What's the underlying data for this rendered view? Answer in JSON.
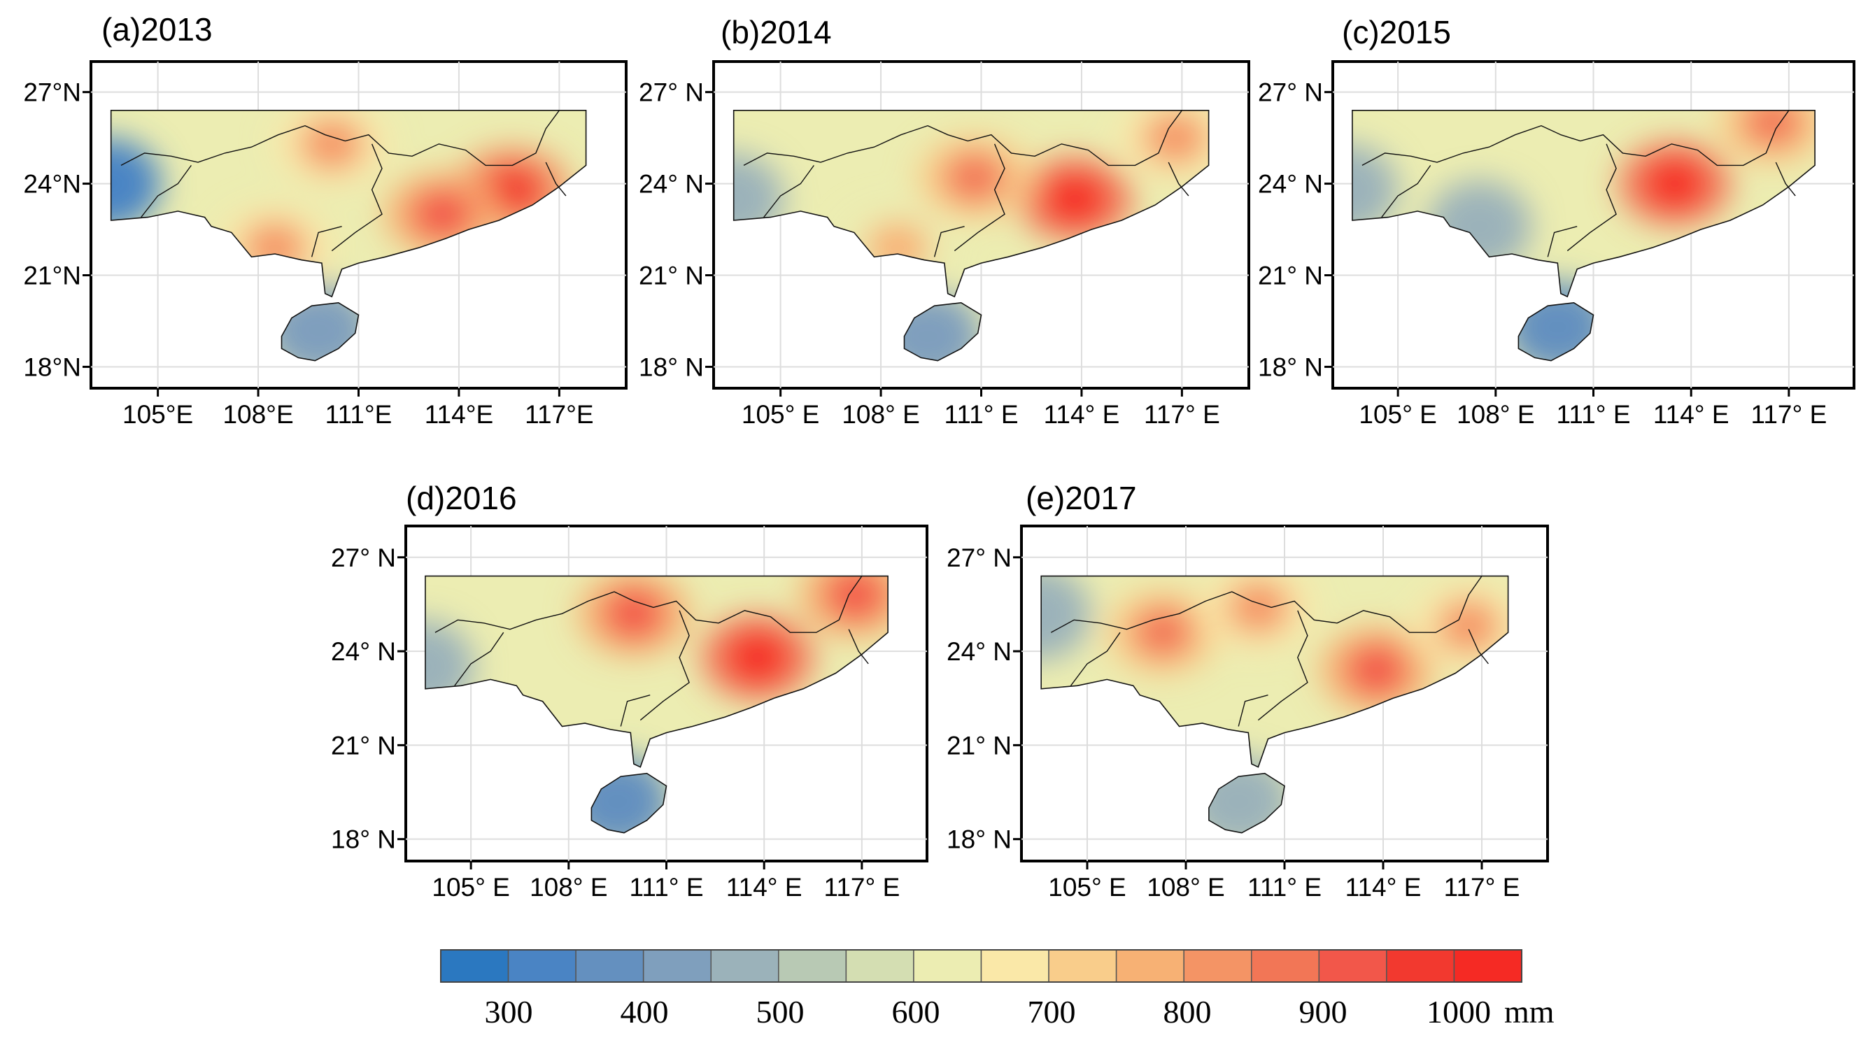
{
  "panels": [
    {
      "id": "a",
      "title": "(a)2013",
      "lat_labels": [
        "27°N",
        "24°N",
        "21°N",
        "18°N"
      ],
      "lon_labels": [
        "105°E",
        "108°E",
        "111°E",
        "114°E",
        "117°E"
      ],
      "hotspots": [
        {
          "lon": 115.6,
          "lat": 23.8,
          "mm": 950
        },
        {
          "lon": 113.5,
          "lat": 23.0,
          "mm": 900
        },
        {
          "lon": 110.2,
          "lat": 25.3,
          "mm": 820
        },
        {
          "lon": 108.5,
          "lat": 21.9,
          "mm": 780
        }
      ],
      "dryspots": [
        {
          "lon": 103.5,
          "lat": 24.0,
          "mm": 320
        },
        {
          "lon": 109.8,
          "lat": 19.2,
          "mm": 420
        }
      ]
    },
    {
      "id": "b",
      "title": "(b)2014",
      "lat_labels": [
        "27° N",
        "24° N",
        "21° N",
        "18° N"
      ],
      "lon_labels": [
        "105° E",
        "108° E",
        "111° E",
        "114° E",
        "117° E"
      ],
      "hotspots": [
        {
          "lon": 113.8,
          "lat": 23.5,
          "mm": 980
        },
        {
          "lon": 110.8,
          "lat": 24.2,
          "mm": 850
        },
        {
          "lon": 116.8,
          "lat": 25.5,
          "mm": 800
        },
        {
          "lon": 108.5,
          "lat": 21.9,
          "mm": 760
        }
      ],
      "dryspots": [
        {
          "lon": 103.5,
          "lat": 23.5,
          "mm": 430
        },
        {
          "lon": 109.4,
          "lat": 19.0,
          "mm": 400
        }
      ]
    },
    {
      "id": "c",
      "title": "(c)2015",
      "lat_labels": [
        "27° N",
        "24° N",
        "21° N",
        "18° N"
      ],
      "lon_labels": [
        "105° E",
        "108° E",
        "111° E",
        "114° E",
        "117° E"
      ],
      "hotspots": [
        {
          "lon": 113.5,
          "lat": 24.0,
          "mm": 1000
        },
        {
          "lon": 116.5,
          "lat": 26.0,
          "mm": 850
        }
      ],
      "dryspots": [
        {
          "lon": 103.4,
          "lat": 23.8,
          "mm": 450
        },
        {
          "lon": 109.9,
          "lat": 19.3,
          "mm": 350
        },
        {
          "lon": 107.5,
          "lat": 22.6,
          "mm": 440
        }
      ]
    },
    {
      "id": "d",
      "title": "(d)2016",
      "lat_labels": [
        "27° N",
        "24° N",
        "21° N",
        "18° N"
      ],
      "lon_labels": [
        "105° E",
        "108° E",
        "111° E",
        "114° E",
        "117° E"
      ],
      "hotspots": [
        {
          "lon": 113.8,
          "lat": 23.8,
          "mm": 1000
        },
        {
          "lon": 110.0,
          "lat": 25.2,
          "mm": 900
        },
        {
          "lon": 116.8,
          "lat": 25.8,
          "mm": 880
        }
      ],
      "dryspots": [
        {
          "lon": 103.5,
          "lat": 23.5,
          "mm": 450
        },
        {
          "lon": 109.5,
          "lat": 19.2,
          "mm": 360
        }
      ]
    },
    {
      "id": "e",
      "title": "(e)2017",
      "lat_labels": [
        "27° N",
        "24° N",
        "21° N",
        "18° N"
      ],
      "lon_labels": [
        "105° E",
        "108° E",
        "111° E",
        "114° E",
        "117° E"
      ],
      "hotspots": [
        {
          "lon": 113.8,
          "lat": 23.4,
          "mm": 900
        },
        {
          "lon": 107.3,
          "lat": 24.6,
          "mm": 850
        },
        {
          "lon": 110.2,
          "lat": 25.4,
          "mm": 800
        },
        {
          "lon": 116.6,
          "lat": 24.8,
          "mm": 780
        }
      ],
      "dryspots": [
        {
          "lon": 103.5,
          "lat": 25.2,
          "mm": 430
        },
        {
          "lon": 109.6,
          "lat": 19.2,
          "mm": 470
        }
      ]
    }
  ],
  "colorbar": {
    "colors": [
      "#2b78c0",
      "#4a84c4",
      "#6490bf",
      "#7f9fbd",
      "#9bb2ba",
      "#b8c9b4",
      "#d4deb2",
      "#ecedb2",
      "#fae8a8",
      "#f9cd8b",
      "#f7b174",
      "#f49465",
      "#f27656",
      "#f2574a",
      "#f2392f",
      "#f52a24"
    ],
    "labels": [
      "300",
      "400",
      "500",
      "600",
      "700",
      "800",
      "900",
      "1000"
    ],
    "unit": "mm"
  }
}
